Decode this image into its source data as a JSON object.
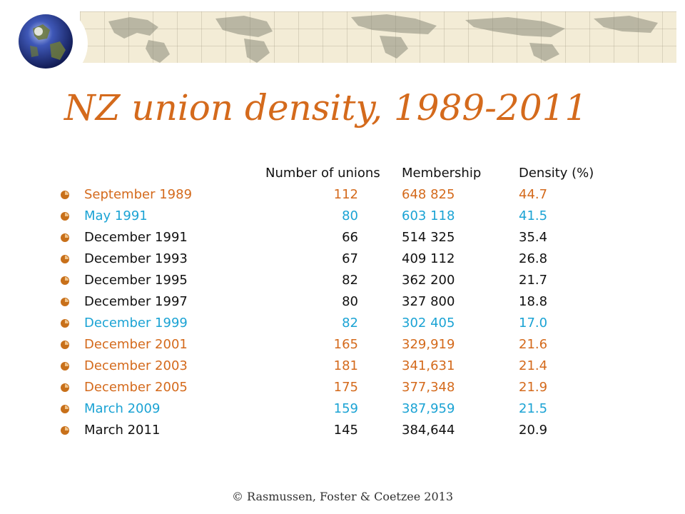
{
  "slide": {
    "title": "NZ union density, 1989-2011",
    "footer": "© Rasmussen, Foster & Coetzee 2013"
  },
  "table": {
    "headers": {
      "unions": "Number of unions",
      "membership": "Membership",
      "density": "Density (%)"
    },
    "rows": [
      {
        "period": "September 1989",
        "unions": "112",
        "membership": "648 825",
        "density": "44.7",
        "color": "orange"
      },
      {
        "period": "May 1991",
        "unions": "80",
        "membership": "603 118",
        "density": "41.5",
        "color": "cyan"
      },
      {
        "period": "December 1991",
        "unions": "66",
        "membership": "514 325",
        "density": "35.4",
        "color": "black"
      },
      {
        "period": "December 1993",
        "unions": "67",
        "membership": "409 112",
        "density": "26.8",
        "color": "black"
      },
      {
        "period": "December 1995",
        "unions": "82",
        "membership": "362 200",
        "density": "21.7",
        "color": "black"
      },
      {
        "period": "December 1997",
        "unions": "80",
        "membership": "327 800",
        "density": "18.8",
        "color": "black"
      },
      {
        "period": "December 1999",
        "unions": "82",
        "membership": "302 405",
        "density": "17.0",
        "color": "cyan"
      },
      {
        "period": "December 2001",
        "unions": "165",
        "membership": "329,919",
        "density": "21.6",
        "color": "orange"
      },
      {
        "period": "December 2003",
        "unions": "181",
        "membership": "341,631",
        "density": "21.4",
        "color": "orange"
      },
      {
        "period": "December 2005",
        "unions": "175",
        "membership": "377,348",
        "density": "21.9",
        "color": "orange"
      },
      {
        "period": "March 2009",
        "unions": "159",
        "membership": "387,959",
        "density": "21.5",
        "color": "cyan"
      },
      {
        "period": "March 2011",
        "unions": "145",
        "membership": "384,644",
        "density": "20.9",
        "color": "black"
      }
    ]
  },
  "colors": {
    "orange": "#d46a1c",
    "cyan": "#1ba3d4",
    "black": "#111111",
    "bullet": "#c8701a"
  },
  "icons": {
    "banner": "world-map-banner",
    "globe": "globe-icon",
    "bullet": "bullet-icon"
  }
}
